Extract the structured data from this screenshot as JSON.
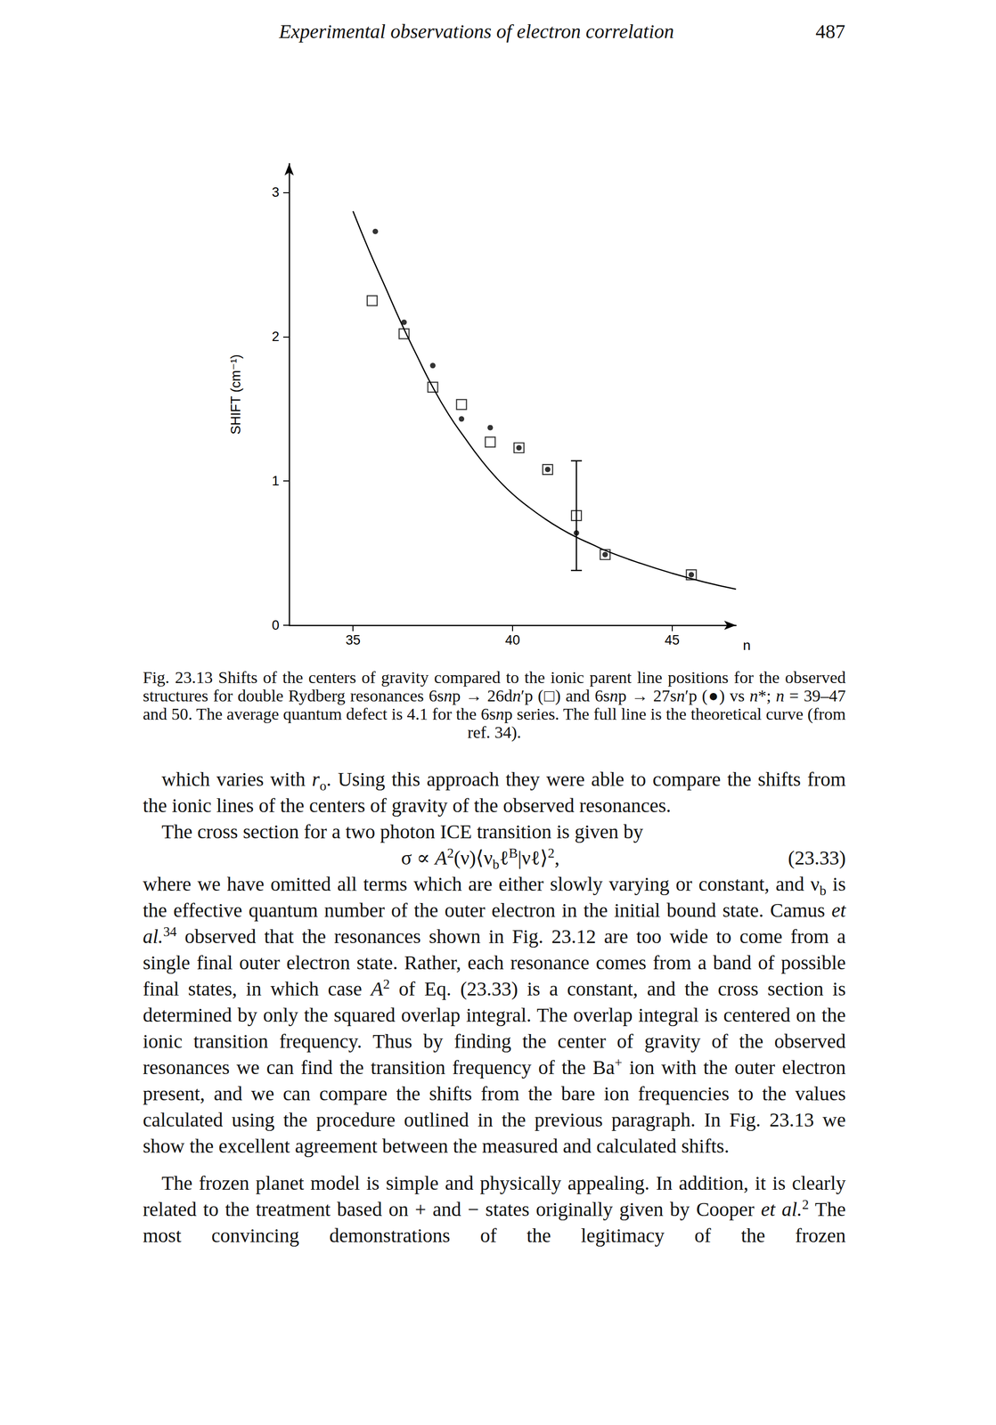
{
  "header": {
    "title": "Experimental observations of electron correlation",
    "page": "487"
  },
  "chart_data": {
    "type": "scatter",
    "x_label": "n",
    "y_label": "SHIFT (cm⁻¹)",
    "xlim": [
      33,
      47
    ],
    "xticks": [
      35,
      40,
      45
    ],
    "ylim": [
      0,
      3.2
    ],
    "yticks": [
      0,
      1,
      2,
      3
    ],
    "grid": false,
    "series": [
      {
        "type": "scatter",
        "marker": "open-square",
        "color": "#000000",
        "x": [
          35.6,
          36.6,
          37.5,
          38.4,
          39.3,
          40.2,
          41.1,
          42.0,
          42.9,
          45.6
        ],
        "values": [
          2.25,
          2.02,
          1.65,
          1.53,
          1.27,
          1.23,
          1.08,
          0.76,
          0.49,
          0.35
        ],
        "errors": [
          null,
          null,
          null,
          null,
          null,
          null,
          null,
          0.38,
          null,
          null
        ]
      },
      {
        "type": "scatter",
        "marker": "circle",
        "color": "#000000",
        "x": [
          35.7,
          36.6,
          37.5,
          38.4,
          39.3,
          40.2,
          41.1,
          42.0,
          42.9,
          45.6
        ],
        "values": [
          2.73,
          2.1,
          1.8,
          1.43,
          1.37,
          1.23,
          1.08,
          0.64,
          0.49,
          0.35
        ]
      },
      {
        "type": "line",
        "line_style": "solid",
        "color": "#000000",
        "x": [
          35,
          35.5,
          36,
          36.5,
          37,
          37.5,
          38,
          38.5,
          39,
          39.5,
          40,
          40.5,
          41,
          41.5,
          42,
          42.5,
          43,
          44,
          45,
          46,
          47
        ],
        "values": [
          2.87,
          2.6,
          2.35,
          2.1,
          1.87,
          1.65,
          1.46,
          1.3,
          1.15,
          1.02,
          0.91,
          0.82,
          0.74,
          0.67,
          0.61,
          0.56,
          0.51,
          0.43,
          0.36,
          0.3,
          0.25
        ]
      }
    ]
  },
  "caption": [
    "Fig. 23.13 Shifts of the centers of gravity compared to the ionic parent line positions for the observed structures for double Rydberg resonances 6s",
    {
      "i": "n"
    },
    "p → 26d",
    {
      "i": "n"
    },
    "′p (□) and 6s",
    {
      "i": "n"
    },
    "p → 27s",
    {
      "i": "n"
    },
    "′p (●) vs ",
    {
      "i": "n"
    },
    "*; ",
    {
      "i": "n"
    },
    " = 39–47 and 50. The average quantum defect is 4.1 for the 6s",
    {
      "i": "n"
    },
    "p series. The full line is the theoretical curve (from ref. 34)."
  ],
  "body": {
    "paragraphs": [
      [
        "which varies with ",
        {
          "i": "r"
        },
        {
          "sub": "o"
        },
        ". Using this approach they were able to compare the shifts from the ionic lines of the centers of gravity of the observed resonances."
      ],
      [
        "The cross section for a two photon ICE transition is given by"
      ]
    ],
    "equation": {
      "text": [
        "σ ∝ ",
        {
          "i": "A"
        },
        {
          "sup": "2"
        },
        "(ν)⟨ν",
        {
          "sub": "b"
        },
        "ℓ",
        {
          "sup": "B"
        },
        "|νℓ⟩",
        {
          "sup": "2"
        },
        ","
      ],
      "number": "(23.33)"
    },
    "paragraphs_after": [
      [
        "where we have omitted all terms which are either slowly varying or constant, and ν",
        {
          "sub": "b"
        },
        " is the effective quantum number of the outer electron in the initial bound state. Camus ",
        {
          "i": "et al."
        },
        {
          "sup": "34"
        },
        " observed that the resonances shown in Fig. 23.12 are too wide to come from a single final outer electron state. Rather, each resonance comes from a band of possible final states, in which case ",
        {
          "i": "A"
        },
        {
          "sup": "2"
        },
        " of Eq. (23.33) is a constant, and the cross section is determined by only the squared overlap integral. The overlap integral is centered on the ionic transition frequency. Thus by finding the center of gravity of the observed resonances we can find the transition frequency of the Ba",
        {
          "sup": "+"
        },
        " ion with the outer electron present, and we can compare the shifts from the bare ion frequencies to the values calculated using the procedure outlined in the previous paragraph. In Fig. 23.13 we show the excellent agreement between the measured and calculated shifts."
      ],
      [
        "The frozen planet model is simple and physically appealing. In addition, it is clearly related to the treatment based on + and − states originally given by Cooper ",
        {
          "i": "et al."
        },
        {
          "sup": "2"
        },
        " The most convincing demonstrations of the legitimacy of the frozen"
      ]
    ]
  }
}
